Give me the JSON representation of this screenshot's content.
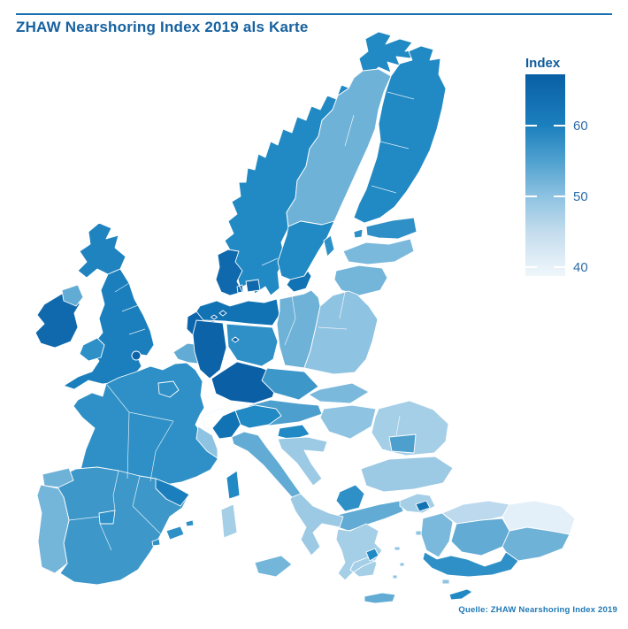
{
  "header": {
    "title": "ZHAW Nearshoring Index 2019 als Karte"
  },
  "source_note": "Quelle: ZHAW Nearshoring Index 2019",
  "colors": {
    "accent_blue": "#16619f",
    "rule_line": "#1a6fb0",
    "tick_label": "#2d6da8",
    "source_text": "#1e78b6",
    "sea": "#ffffff",
    "region_border": "#ffffff"
  },
  "chart_data": {
    "type": "choropleth",
    "title": "ZHAW Nearshoring Index 2019 als Karte",
    "metric": "ZHAW Nearshoring Index 2019",
    "source": "Quelle: ZHAW Nearshoring Index 2019",
    "legend": {
      "title": "Index",
      "ticks": [
        60,
        50,
        40
      ],
      "domain": [
        38,
        68
      ],
      "gradient_stops": [
        {
          "offset": "0%",
          "color": "#0a5fa5"
        },
        {
          "offset": "25%",
          "color": "#1b7fbd"
        },
        {
          "offset": "43%",
          "color": "#4fa1cf"
        },
        {
          "offset": "61%",
          "color": "#8fc3e2"
        },
        {
          "offset": "78%",
          "color": "#c3dced"
        },
        {
          "offset": "96%",
          "color": "#e8f2f9"
        },
        {
          "offset": "100%",
          "color": "#eef6fb"
        }
      ]
    },
    "regions": {
      "ireland": {
        "label": "Ireland",
        "index": 62,
        "color": "#1069ad"
      },
      "northern_ireland": {
        "label": "Northern Ireland",
        "index": 54,
        "color": "#61abd4"
      },
      "scotland": {
        "label": "Scotland",
        "index": 59,
        "color": "#1f83c0"
      },
      "england": {
        "label": "England",
        "index": 60,
        "color": "#1b7fbd"
      },
      "london": {
        "label": "London",
        "index": 64,
        "color": "#0c63a8"
      },
      "wales": {
        "label": "Wales",
        "index": 57,
        "color": "#2e90c6"
      },
      "norway": {
        "label": "Norway",
        "index": 58,
        "color": "#2189c3"
      },
      "sweden_north": {
        "label": "Northern Sweden",
        "index": 53,
        "color": "#6fb2d8"
      },
      "sweden_south": {
        "label": "Southern Sweden",
        "index": 58,
        "color": "#2189c3"
      },
      "skane": {
        "label": "Skane",
        "index": 61,
        "color": "#1173b4"
      },
      "finland": {
        "label": "Finland",
        "index": 58,
        "color": "#2189c3"
      },
      "gotland": {
        "label": "Gotland",
        "index": 57,
        "color": "#2e90c6"
      },
      "denmark": {
        "label": "Denmark",
        "index": 62,
        "color": "#1069ad"
      },
      "estonia": {
        "label": "Estonia",
        "index": 57,
        "color": "#2e90c6"
      },
      "latvia": {
        "label": "Latvia",
        "index": 51,
        "color": "#7ab8dc"
      },
      "lithuania": {
        "label": "Lithuania",
        "index": 52,
        "color": "#74b5da"
      },
      "netherlands": {
        "label": "Netherlands",
        "index": 63,
        "color": "#0d66ab"
      },
      "belgium": {
        "label": "Belgium",
        "index": 54,
        "color": "#61abd4"
      },
      "luxembourg": {
        "label": "Luxembourg",
        "index": 57,
        "color": "#2e90c6"
      },
      "germany_north": {
        "label": "Germany North",
        "index": 61,
        "color": "#1173b4"
      },
      "germany_west": {
        "label": "Germany West",
        "index": 64,
        "color": "#0c63a8"
      },
      "germany_east": {
        "label": "Germany East",
        "index": 57,
        "color": "#2e90c6"
      },
      "germany_south": {
        "label": "Germany South",
        "index": 65,
        "color": "#0a5fa5"
      },
      "city_states": {
        "label": "Hamburg / Bremen / Berlin",
        "index": 64,
        "color": "#0c63a8"
      },
      "poland_west": {
        "label": "Poland West",
        "index": 53,
        "color": "#6fb2d8"
      },
      "poland_east": {
        "label": "Poland East",
        "index": 50,
        "color": "#8fc3e2"
      },
      "czechia": {
        "label": "Czechia",
        "index": 56,
        "color": "#3d97c9"
      },
      "slovakia": {
        "label": "Slovakia",
        "index": 51,
        "color": "#7ab8dc"
      },
      "austria": {
        "label": "Austria",
        "index": 55,
        "color": "#4d9fcd"
      },
      "hungary": {
        "label": "Hungary",
        "index": 50,
        "color": "#8fc3e2"
      },
      "slovenia": {
        "label": "Slovenia",
        "index": 58,
        "color": "#2189c3"
      },
      "croatia": {
        "label": "Croatia",
        "index": 48,
        "color": "#9cc9e4"
      },
      "romania": {
        "label": "Romania",
        "index": 47,
        "color": "#a5cfe7"
      },
      "romania_south": {
        "label": "Romania South",
        "index": 55,
        "color": "#4d9fcd"
      },
      "bulgaria": {
        "label": "Bulgaria",
        "index": 48,
        "color": "#9cc9e4"
      },
      "sofia": {
        "label": "Sofia Region",
        "index": 57,
        "color": "#2e90c6"
      },
      "greece_north": {
        "label": "Greece North",
        "index": 54,
        "color": "#61abd4"
      },
      "greece": {
        "label": "Greece",
        "index": 47,
        "color": "#a5cfe7"
      },
      "attica": {
        "label": "Attica",
        "index": 58,
        "color": "#2189c3"
      },
      "crete": {
        "label": "Crete",
        "index": 54,
        "color": "#61abd4"
      },
      "aegean_islands": {
        "label": "Aegean Islands",
        "index": 50,
        "color": "#8fc3e2"
      },
      "turkey_thrace": {
        "label": "Turkey Thrace",
        "index": 47,
        "color": "#a5cfe7"
      },
      "istanbul": {
        "label": "Istanbul",
        "index": 61,
        "color": "#1173b4"
      },
      "turkey_west": {
        "label": "Turkey West",
        "index": 51,
        "color": "#7ab8dc"
      },
      "turkey_north": {
        "label": "Turkey North",
        "index": 45,
        "color": "#bcd9ee"
      },
      "turkey_central": {
        "label": "Turkey Central",
        "index": 54,
        "color": "#61abd4"
      },
      "turkey_east": {
        "label": "Turkey East",
        "index": 40,
        "color": "#e4f0f9"
      },
      "turkey_southeast": {
        "label": "Turkey Southeast",
        "index": 53,
        "color": "#6fb2d8"
      },
      "turkey_south": {
        "label": "Turkey South",
        "index": 57,
        "color": "#2e90c6"
      },
      "cyprus": {
        "label": "Cyprus",
        "index": 58,
        "color": "#2189c3"
      },
      "france": {
        "label": "France",
        "index": 57,
        "color": "#2e90c6"
      },
      "paris": {
        "label": "Ile-de-France",
        "index": 57,
        "color": "#2e90c6"
      },
      "france_southeast": {
        "label": "France Southeast",
        "index": 50,
        "color": "#8fc3e2"
      },
      "spain": {
        "label": "Spain",
        "index": 56,
        "color": "#3d97c9"
      },
      "catalonia": {
        "label": "Catalonia",
        "index": 60,
        "color": "#1b7fbd"
      },
      "galicia": {
        "label": "Galicia",
        "index": 53,
        "color": "#6fb2d8"
      },
      "madrid": {
        "label": "Madrid",
        "index": 57,
        "color": "#2e90c6"
      },
      "portugal": {
        "label": "Portugal",
        "index": 52,
        "color": "#74b5da"
      },
      "balearics": {
        "label": "Balearic Islands",
        "index": 57,
        "color": "#2e90c6"
      },
      "italy_northwest": {
        "label": "Italy Northwest",
        "index": 61,
        "color": "#1173b4"
      },
      "italy_northeast": {
        "label": "Italy Northeast",
        "index": 58,
        "color": "#2189c3"
      },
      "italy_center": {
        "label": "Italy Center",
        "index": 54,
        "color": "#61abd4"
      },
      "italy_south": {
        "label": "Italy South",
        "index": 48,
        "color": "#9cc9e4"
      },
      "sicily": {
        "label": "Sicily",
        "index": 52,
        "color": "#74b5da"
      },
      "sardinia": {
        "label": "Sardinia",
        "index": 47,
        "color": "#a5cfe7"
      },
      "corsica": {
        "label": "Corsica",
        "index": 58,
        "color": "#2189c3"
      },
      "switzerland": {
        "label": "Switzerland (no data)",
        "color": "#ffffff"
      }
    }
  }
}
